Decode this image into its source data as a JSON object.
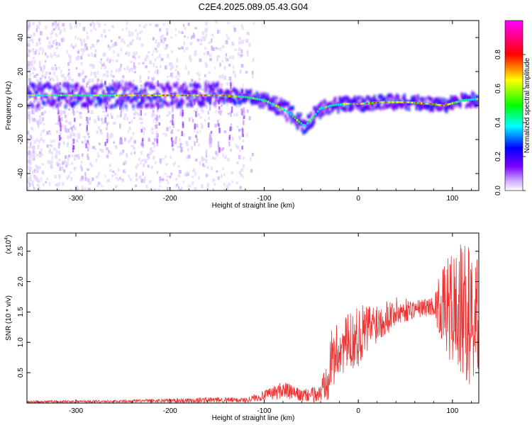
{
  "title": "C2E4.2025.089.05.43.G04",
  "chart_data": [
    {
      "type": "heatmap",
      "xlabel": "Height of straight line (km)",
      "ylabel": "Frequency (Hz)",
      "xlim": [
        -352,
        128
      ],
      "ylim": [
        -50,
        50
      ],
      "xticks": [
        -300,
        -200,
        -100,
        0,
        100
      ],
      "yticks": [
        -40,
        -20,
        0,
        20,
        40
      ],
      "colorbar": {
        "label": "Normalized spectral amplitude",
        "range": [
          0,
          1
        ],
        "ticks": [
          "0.0",
          "0.2",
          "0.4",
          "0.6",
          "0.8"
        ],
        "colormap": [
          "#ffffff",
          "#8000ff",
          "#0000ff",
          "#00ffff",
          "#00ff00",
          "#ffff00",
          "#ff0000",
          "#ff00ff"
        ]
      },
      "ridge_center_hz": [
        {
          "x": -350,
          "y": 6
        },
        {
          "x": -300,
          "y": 6
        },
        {
          "x": -250,
          "y": 6
        },
        {
          "x": -200,
          "y": 6
        },
        {
          "x": -150,
          "y": 6
        },
        {
          "x": -120,
          "y": 5
        },
        {
          "x": -100,
          "y": 3
        },
        {
          "x": -85,
          "y": -1
        },
        {
          "x": -75,
          "y": -4
        },
        {
          "x": -65,
          "y": -9
        },
        {
          "x": -58,
          "y": -12
        },
        {
          "x": -50,
          "y": -8
        },
        {
          "x": -42,
          "y": -2
        },
        {
          "x": -30,
          "y": 0
        },
        {
          "x": -15,
          "y": 1
        },
        {
          "x": 0,
          "y": 1
        },
        {
          "x": 25,
          "y": 2
        },
        {
          "x": 50,
          "y": 2
        },
        {
          "x": 75,
          "y": 1
        },
        {
          "x": 90,
          "y": 0
        },
        {
          "x": 110,
          "y": 3
        },
        {
          "x": 128,
          "y": 4
        }
      ]
    },
    {
      "type": "line",
      "xlabel": "Height of straight line (km)",
      "ylabel": "SNR (10 * v/v)",
      "scale_label": "(x10",
      "scale_exp": "4",
      "scale_close": ")",
      "xlim": [
        -352,
        128
      ],
      "ylim": [
        0,
        2.8
      ],
      "xticks": [
        -300,
        -200,
        -100,
        0,
        100
      ],
      "yticks": [
        "0.5",
        "1.0",
        "1.5",
        "2.0",
        "2.5"
      ],
      "series": [
        {
          "color": "#ee3333",
          "envelope": [
            {
              "x": -352,
              "mean": 0.02,
              "amp": 0.02
            },
            {
              "x": -250,
              "mean": 0.03,
              "amp": 0.02
            },
            {
              "x": -160,
              "mean": 0.05,
              "amp": 0.05
            },
            {
              "x": -120,
              "mean": 0.05,
              "amp": 0.04
            },
            {
              "x": -100,
              "mean": 0.12,
              "amp": 0.08
            },
            {
              "x": -80,
              "mean": 0.22,
              "amp": 0.15
            },
            {
              "x": -60,
              "mean": 0.12,
              "amp": 0.1
            },
            {
              "x": -40,
              "mean": 0.15,
              "amp": 0.15
            },
            {
              "x": -32,
              "mean": 0.6,
              "amp": 0.55
            },
            {
              "x": -20,
              "mean": 0.9,
              "amp": 0.45
            },
            {
              "x": 0,
              "mean": 1.1,
              "amp": 0.5
            },
            {
              "x": 20,
              "mean": 1.35,
              "amp": 0.35
            },
            {
              "x": 40,
              "mean": 1.5,
              "amp": 0.25
            },
            {
              "x": 60,
              "mean": 1.55,
              "amp": 0.15
            },
            {
              "x": 80,
              "mean": 1.6,
              "amp": 0.15
            },
            {
              "x": 85,
              "mean": 1.6,
              "amp": 0.45
            },
            {
              "x": 100,
              "mean": 1.55,
              "amp": 1.0
            },
            {
              "x": 115,
              "mean": 1.45,
              "amp": 1.2
            },
            {
              "x": 128,
              "mean": 1.4,
              "amp": 1.0
            }
          ]
        }
      ]
    }
  ]
}
